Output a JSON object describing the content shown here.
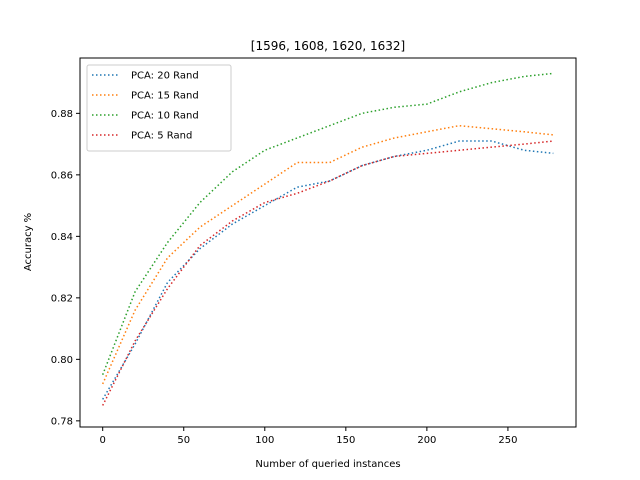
{
  "chart_data": {
    "type": "line",
    "title": "[1596, 1608, 1620, 1632]",
    "xlabel": "Number of queried instances",
    "ylabel": "Accuracy %",
    "xlim": [
      -14,
      292
    ],
    "ylim": [
      0.778,
      0.898
    ],
    "xticks": [
      0,
      50,
      100,
      150,
      200,
      250
    ],
    "yticks": [
      0.78,
      0.8,
      0.82,
      0.84,
      0.86,
      0.88
    ],
    "ytick_labels": [
      "0.78",
      "0.80",
      "0.82",
      "0.84",
      "0.86",
      "0.88"
    ],
    "grid": false,
    "legend_position": "upper-left",
    "line_style": "dotted",
    "x": [
      0,
      20,
      40,
      60,
      80,
      100,
      120,
      140,
      160,
      180,
      200,
      220,
      240,
      260,
      278
    ],
    "series": [
      {
        "name": "PCA: 20 Rand",
        "color": "#1f77b4",
        "values": [
          0.787,
          0.805,
          0.825,
          0.836,
          0.844,
          0.85,
          0.856,
          0.858,
          0.863,
          0.866,
          0.868,
          0.871,
          0.871,
          0.868,
          0.867
        ]
      },
      {
        "name": "PCA: 15 Rand",
        "color": "#ff7f0e",
        "values": [
          0.792,
          0.816,
          0.833,
          0.843,
          0.85,
          0.857,
          0.864,
          0.864,
          0.869,
          0.872,
          0.874,
          0.876,
          0.875,
          0.874,
          0.873
        ]
      },
      {
        "name": "PCA: 10 Rand",
        "color": "#2ca02c",
        "values": [
          0.795,
          0.822,
          0.838,
          0.851,
          0.861,
          0.868,
          0.872,
          0.876,
          0.88,
          0.882,
          0.883,
          0.887,
          0.89,
          0.892,
          0.893
        ]
      },
      {
        "name": "PCA: 5 Rand",
        "color": "#d62728",
        "values": [
          0.785,
          0.806,
          0.823,
          0.837,
          0.845,
          0.851,
          0.854,
          0.858,
          0.863,
          0.866,
          0.867,
          0.868,
          0.869,
          0.87,
          0.871
        ]
      }
    ]
  }
}
